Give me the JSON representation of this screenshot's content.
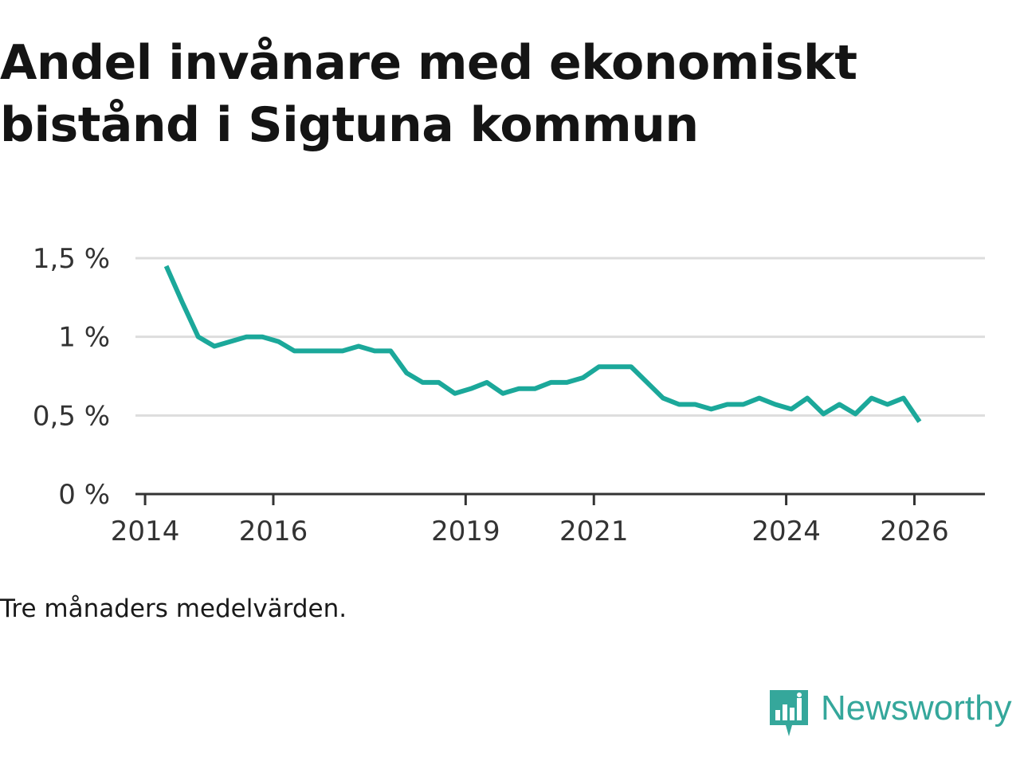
{
  "title_lines": [
    "Andel invånare med ekonomiskt",
    "bistånd i Sigtuna kommun"
  ],
  "caption": "Tre månaders medelvärden.",
  "brand": {
    "name": "Newsworthy",
    "icon": "newsworthy-logo-icon",
    "color": "#35a79b"
  },
  "colors": {
    "line": "#1ba89a",
    "grid": "#dddddd",
    "axis": "#333333",
    "text": "#333333"
  },
  "chart_data": {
    "type": "line",
    "title": "Andel invånare med ekonomiskt bistånd i Sigtuna kommun",
    "xlabel": "",
    "ylabel": "",
    "xlim": [
      2013.85,
      2027.1
    ],
    "ylim": [
      0,
      1.5
    ],
    "grid": true,
    "x_ticks": [
      {
        "value": 2014,
        "label": "2014"
      },
      {
        "value": 2016,
        "label": "2016"
      },
      {
        "value": 2019,
        "label": "2019"
      },
      {
        "value": 2021,
        "label": "2021"
      },
      {
        "value": 2024,
        "label": "2024"
      },
      {
        "value": 2026,
        "label": "2026"
      }
    ],
    "y_ticks": [
      {
        "value": 0,
        "label": "0 %"
      },
      {
        "value": 0.5,
        "label": "0,5 %"
      },
      {
        "value": 1,
        "label": "1 %"
      },
      {
        "value": 1.5,
        "label": "1,5 %"
      }
    ],
    "series": [
      {
        "name": "Andel invånare med ekonomiskt bistånd",
        "x": [
          2014.33,
          2014.58,
          2014.83,
          2015.08,
          2015.33,
          2015.58,
          2015.83,
          2016.08,
          2016.33,
          2016.58,
          2016.83,
          2017.08,
          2017.33,
          2017.58,
          2017.83,
          2018.08,
          2018.33,
          2018.58,
          2018.83,
          2019.08,
          2019.33,
          2019.58,
          2019.83,
          2020.08,
          2020.33,
          2020.58,
          2020.83,
          2021.08,
          2021.33,
          2021.58,
          2021.83,
          2022.08,
          2022.33,
          2022.58,
          2022.83,
          2023.08,
          2023.33,
          2023.58,
          2023.83,
          2024.08,
          2024.33,
          2024.58,
          2024.83,
          2025.08,
          2025.33,
          2025.58,
          2025.83,
          2026.08
        ],
        "values": [
          1.45,
          1.22,
          1.0,
          0.94,
          0.97,
          1.0,
          1.0,
          0.97,
          0.91,
          0.91,
          0.91,
          0.91,
          0.94,
          0.91,
          0.91,
          0.77,
          0.71,
          0.71,
          0.64,
          0.67,
          0.71,
          0.64,
          0.67,
          0.67,
          0.71,
          0.71,
          0.74,
          0.81,
          0.81,
          0.81,
          0.71,
          0.61,
          0.57,
          0.57,
          0.54,
          0.57,
          0.57,
          0.61,
          0.57,
          0.54,
          0.61,
          0.51,
          0.57,
          0.51,
          0.61,
          0.57,
          0.61,
          0.46
        ]
      }
    ]
  }
}
